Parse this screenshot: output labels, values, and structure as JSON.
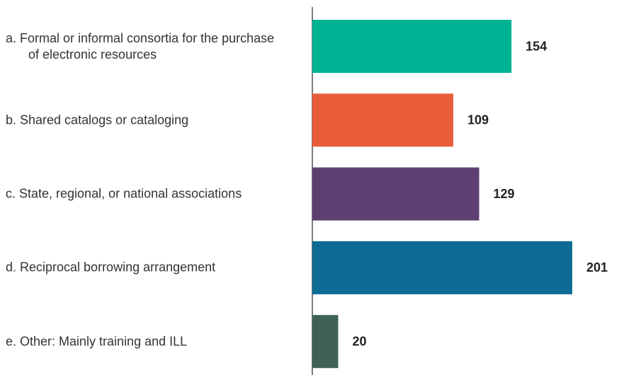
{
  "chart_data": {
    "type": "bar",
    "orientation": "horizontal",
    "categories": [
      "a. Formal or informal consortia for the purchase of electronic resources",
      "b. Shared catalogs or cataloging",
      "c. State, regional, or national associations",
      "d. Reciprocal borrowing arrangement",
      "e. Other: Mainly training and ILL"
    ],
    "values": [
      154,
      109,
      129,
      201,
      20
    ],
    "colors": [
      "#00b294",
      "#e85c3a",
      "#5e3f72",
      "#0d6b94",
      "#3e6354"
    ]
  }
}
